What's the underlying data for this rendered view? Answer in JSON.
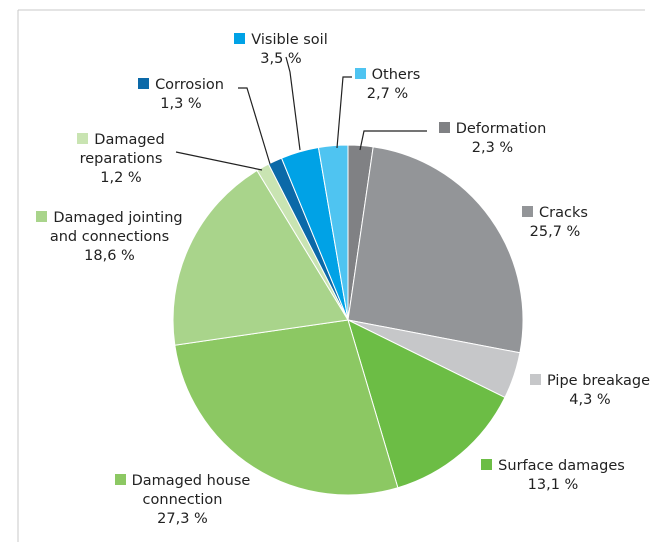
{
  "chart_data": {
    "type": "pie",
    "categories": [
      "Deformation",
      "Cracks",
      "Pipe breakage",
      "Surface damages",
      "Damaged house connection",
      "Damaged jointing and connections",
      "Damaged reparations",
      "Corrosion",
      "Visible soil",
      "Others"
    ],
    "values": [
      2.3,
      25.7,
      4.3,
      13.1,
      27.3,
      18.6,
      1.2,
      1.3,
      3.5,
      2.7
    ],
    "value_labels": [
      "2,3 %",
      "25,7 %",
      "4,3 %",
      "13,1 %",
      "27,3 %",
      "18,6 %",
      "1,2 %",
      "1,3 %",
      "3,5 %",
      "2,7 %"
    ],
    "colors": [
      "#808184",
      "#939598",
      "#c6c7c9",
      "#6cbd45",
      "#8cc863",
      "#a9d48b",
      "#c9e4b2",
      "#0b69a8",
      "#00a2e6",
      "#4fc4f1"
    ]
  }
}
